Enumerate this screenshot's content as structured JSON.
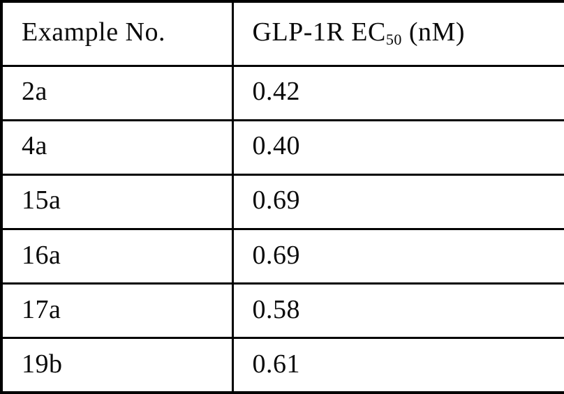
{
  "page": {
    "background": "#ffffff",
    "border_color": "#000000",
    "text_color": "#0a0a0a"
  },
  "table": {
    "header": {
      "col1": "Example No.",
      "col2_prefix": "GLP-1R EC",
      "col2_sub": "50",
      "col2_suffix": " (nM)"
    },
    "rows": [
      {
        "example": "2a",
        "ec50": "0.42"
      },
      {
        "example": "4a",
        "ec50": "0.40"
      },
      {
        "example": "15a",
        "ec50": "0.69"
      },
      {
        "example": "16a",
        "ec50": "0.69"
      },
      {
        "example": "17a",
        "ec50": "0.58"
      },
      {
        "example": "19b",
        "ec50": "0.61"
      }
    ]
  },
  "chart_data": {
    "type": "table",
    "title": "",
    "columns": [
      "Example No.",
      "GLP-1R EC50 (nM)"
    ],
    "rows": [
      [
        "2a",
        0.42
      ],
      [
        "4a",
        0.4
      ],
      [
        "15a",
        0.69
      ],
      [
        "16a",
        0.69
      ],
      [
        "17a",
        0.58
      ],
      [
        "19b",
        0.61
      ]
    ]
  }
}
